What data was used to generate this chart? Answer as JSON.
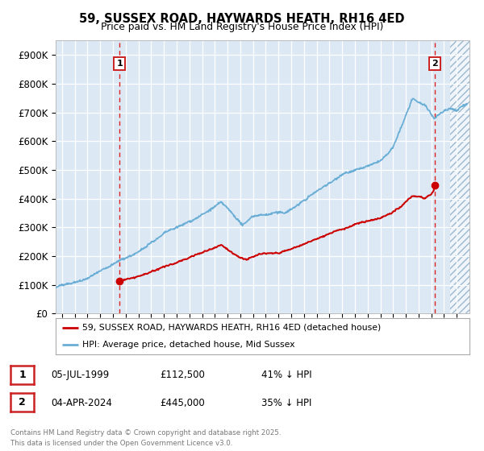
{
  "title": "59, SUSSEX ROAD, HAYWARDS HEATH, RH16 4ED",
  "subtitle": "Price paid vs. HM Land Registry's House Price Index (HPI)",
  "ylabel_ticks": [
    "£0",
    "£100K",
    "£200K",
    "£300K",
    "£400K",
    "£500K",
    "£600K",
    "£700K",
    "£800K",
    "£900K"
  ],
  "ytick_values": [
    0,
    100000,
    200000,
    300000,
    400000,
    500000,
    600000,
    700000,
    800000,
    900000
  ],
  "ylim": [
    0,
    950000
  ],
  "xlim_start": 1994.5,
  "xlim_end": 2027.0,
  "background_color": "#dce9f5",
  "grid_color": "#ffffff",
  "hatch_region_start": 2025.5,
  "marker1_date": 1999.51,
  "marker1_price": 112500,
  "marker2_date": 2024.25,
  "marker2_price": 445000,
  "dashed_line1_x": 1999.51,
  "dashed_line2_x": 2024.25,
  "legend_line1": "59, SUSSEX ROAD, HAYWARDS HEATH, RH16 4ED (detached house)",
  "legend_line2": "HPI: Average price, detached house, Mid Sussex",
  "info1_label": "1",
  "info1_date": "05-JUL-1999",
  "info1_price": "£112,500",
  "info1_hpi": "41% ↓ HPI",
  "info2_label": "2",
  "info2_date": "04-APR-2024",
  "info2_price": "£445,000",
  "info2_hpi": "35% ↓ HPI",
  "footer": "Contains HM Land Registry data © Crown copyright and database right 2025.\nThis data is licensed under the Open Government Licence v3.0.",
  "red_color": "#cc0000",
  "blue_color": "#6aaed6",
  "dashed_color": "#dd2222",
  "box_edge_color": "#cc2222"
}
